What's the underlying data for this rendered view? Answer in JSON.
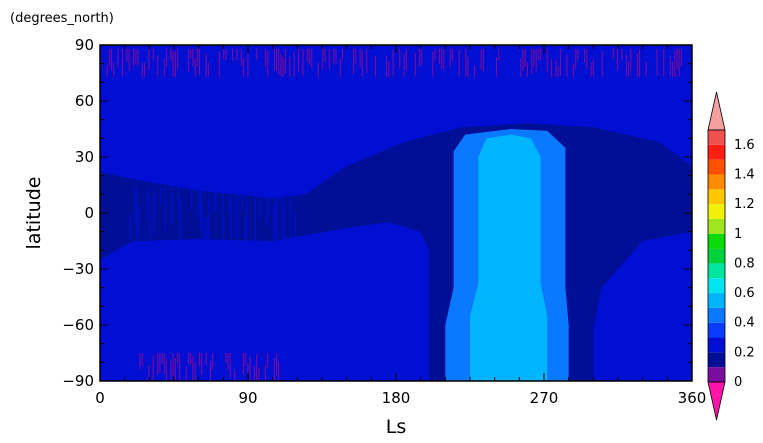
{
  "chart_data": {
    "type": "heatmap",
    "units": "(degrees_north)",
    "xlabel": "Ls",
    "ylabel": "latitude",
    "xlim": [
      0,
      360
    ],
    "ylim": [
      -90,
      90
    ],
    "x_ticks": [
      {
        "value": 0,
        "label": "0"
      },
      {
        "value": 90,
        "label": "90"
      },
      {
        "value": 180,
        "label": "180"
      },
      {
        "value": 270,
        "label": "270"
      },
      {
        "value": 360,
        "label": "360"
      }
    ],
    "y_ticks": [
      {
        "value": 90,
        "label": "90"
      },
      {
        "value": 60,
        "label": "60"
      },
      {
        "value": 30,
        "label": "30"
      },
      {
        "value": 0,
        "label": "0"
      },
      {
        "value": -30,
        "label": "−30"
      },
      {
        "value": -60,
        "label": "−60"
      },
      {
        "value": -90,
        "label": "−90"
      }
    ],
    "colorbar": {
      "levels": [
        {
          "value": 0,
          "label": "0",
          "color": "#7b0d9e"
        },
        {
          "value": 0.1,
          "label": "",
          "color": "#000f96"
        },
        {
          "value": 0.2,
          "label": "0.2",
          "color": "#000fd2"
        },
        {
          "value": 0.3,
          "label": "",
          "color": "#0a3cff"
        },
        {
          "value": 0.4,
          "label": "0.4",
          "color": "#0a78ff"
        },
        {
          "value": 0.5,
          "label": "",
          "color": "#00b4ff"
        },
        {
          "value": 0.6,
          "label": "0.6",
          "color": "#00e6f0"
        },
        {
          "value": 0.7,
          "label": "",
          "color": "#00e6a0"
        },
        {
          "value": 0.8,
          "label": "0.8",
          "color": "#00d23c"
        },
        {
          "value": 0.9,
          "label": "",
          "color": "#0adc0a"
        },
        {
          "value": 1.0,
          "label": "1",
          "color": "#a0e61e"
        },
        {
          "value": 1.1,
          "label": "",
          "color": "#f0f00a"
        },
        {
          "value": 1.2,
          "label": "1.2",
          "color": "#ffc800"
        },
        {
          "value": 1.3,
          "label": "",
          "color": "#ff8c00"
        },
        {
          "value": 1.4,
          "label": "1.4",
          "color": "#ff5000"
        },
        {
          "value": 1.5,
          "label": "",
          "color": "#ff1e14"
        },
        {
          "value": 1.6,
          "label": "1.6",
          "color": "#f05050"
        }
      ],
      "under_color": "#ff14aa",
      "over_color": "#f5a0a0"
    },
    "regions": [
      {
        "level": 0.1,
        "color": "#000f96",
        "polygon": [
          [
            0,
            90
          ],
          [
            360,
            90
          ],
          [
            360,
            -90
          ],
          [
            0,
            -90
          ]
        ]
      },
      {
        "level": 0.2,
        "color": "#000fd2",
        "polygon": [
          [
            0,
            90
          ],
          [
            360,
            90
          ],
          [
            360,
            -90
          ],
          [
            300,
            -90
          ],
          [
            300,
            -62
          ],
          [
            305,
            -40
          ],
          [
            330,
            -15
          ],
          [
            360,
            -10
          ],
          [
            360,
            25
          ],
          [
            340,
            38
          ],
          [
            300,
            46
          ],
          [
            260,
            48
          ],
          [
            220,
            46
          ],
          [
            185,
            38
          ],
          [
            150,
            25
          ],
          [
            125,
            10
          ],
          [
            105,
            8
          ],
          [
            60,
            12
          ],
          [
            20,
            18
          ],
          [
            0,
            22
          ],
          [
            0,
            -25
          ],
          [
            20,
            -15
          ],
          [
            60,
            -14
          ],
          [
            105,
            -15
          ],
          [
            125,
            -12
          ],
          [
            150,
            -8
          ],
          [
            175,
            -5
          ],
          [
            195,
            -10
          ],
          [
            200,
            -20
          ],
          [
            200,
            -90
          ],
          [
            0,
            -90
          ],
          [
            0,
            90
          ]
        ]
      },
      {
        "level": 0.2,
        "color": "#000fd2",
        "polygon": [
          [
            0,
            90
          ],
          [
            360,
            90
          ],
          [
            360,
            85
          ],
          [
            0,
            85
          ]
        ]
      },
      {
        "level": 0.4,
        "color": "#0a78ff",
        "polygon": [
          [
            210,
            -90
          ],
          [
            210,
            -60
          ],
          [
            215,
            -40
          ],
          [
            215,
            33
          ],
          [
            222,
            42
          ],
          [
            250,
            45
          ],
          [
            272,
            44
          ],
          [
            283,
            35
          ],
          [
            283,
            -40
          ],
          [
            285,
            -60
          ],
          [
            285,
            -90
          ]
        ]
      },
      {
        "level": 0.5,
        "color": "#00b4ff",
        "polygon": [
          [
            225,
            -90
          ],
          [
            225,
            -55
          ],
          [
            230,
            -38
          ],
          [
            230,
            30
          ],
          [
            235,
            40
          ],
          [
            250,
            42
          ],
          [
            262,
            40
          ],
          [
            268,
            30
          ],
          [
            268,
            -38
          ],
          [
            272,
            -55
          ],
          [
            272,
            -90
          ]
        ]
      }
    ],
    "noise_bands": [
      {
        "x_range": [
          0,
          360
        ],
        "y_range": [
          73,
          88
        ],
        "color": "#7b0d9e"
      },
      {
        "x_range": [
          20,
          110
        ],
        "y_range": [
          -90,
          -75
        ],
        "color": "#7b0d9e"
      },
      {
        "x_range": [
          18,
          120
        ],
        "y_range": [
          -14,
          14
        ],
        "color": "#000fd2"
      }
    ]
  }
}
